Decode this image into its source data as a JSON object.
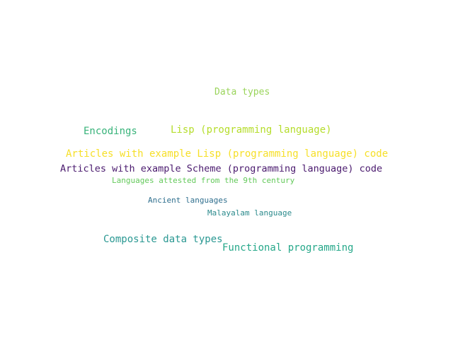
{
  "words": [
    {
      "text": "Data types",
      "color": "#9ad45b"
    },
    {
      "text": "Encodings",
      "color": "#38b37a"
    },
    {
      "text": "Lisp (programming language)",
      "color": "#b5dd2b"
    },
    {
      "text": "Articles with example Lisp (programming language) code",
      "color": "#f6df27"
    },
    {
      "text": "Articles with example Scheme (programming language) code",
      "color": "#4a1a6e"
    },
    {
      "text": "Languages attested from the 9th century",
      "color": "#63c95a"
    },
    {
      "text": "Ancient languages",
      "color": "#2f6f8e"
    },
    {
      "text": "Malayalam language",
      "color": "#2b8a8c"
    },
    {
      "text": "Composite data types",
      "color": "#2a9892"
    },
    {
      "text": "Functional programming",
      "color": "#26a88a"
    }
  ]
}
